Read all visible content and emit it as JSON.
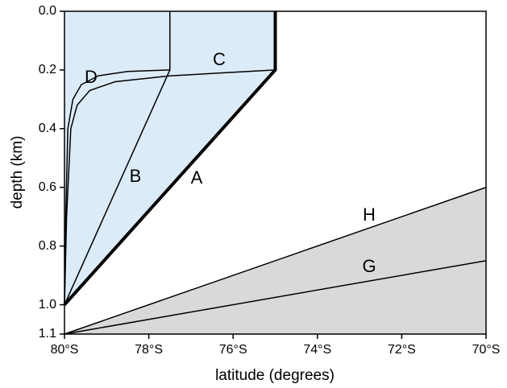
{
  "chart_data": {
    "type": "line",
    "x_label": "latitude (degrees)",
    "y_label": "depth (km)",
    "xlim": [
      80,
      70
    ],
    "ylim": [
      0,
      1.1
    ],
    "y_inverted": true,
    "xticks": [
      {
        "value": 80,
        "label": "80°S"
      },
      {
        "value": 78,
        "label": "78°S"
      },
      {
        "value": 76,
        "label": "76°S"
      },
      {
        "value": 74,
        "label": "74°S"
      },
      {
        "value": 72,
        "label": "72°S"
      },
      {
        "value": 70,
        "label": "70°S"
      }
    ],
    "yticks": [
      {
        "value": 0,
        "label": "0.0"
      },
      0.2,
      0.4,
      0.6,
      0.8,
      {
        "value": 1.0,
        "label": "1.0"
      },
      1.1
    ],
    "series": [
      {
        "name": "A",
        "color": "#000000",
        "style": "bold",
        "fill": "#dcebf8",
        "x": [
          80,
          75,
          75
        ],
        "values": [
          1.0,
          0.2,
          0.0
        ]
      },
      {
        "name": "B",
        "color": "#000000",
        "x": [
          80,
          77.5,
          77.5
        ],
        "values": [
          1.0,
          0.2,
          0.0
        ]
      },
      {
        "name": "C",
        "color": "#000000",
        "x": [
          80,
          79.95,
          79.85,
          79.7,
          79.4,
          78.8,
          77.5,
          75
        ],
        "values": [
          1.0,
          0.7,
          0.4,
          0.32,
          0.27,
          0.24,
          0.22,
          0.2
        ]
      },
      {
        "name": "D",
        "color": "#000000",
        "x": [
          80,
          79.97,
          79.92,
          79.8,
          79.6,
          79.2,
          78.5,
          77.5
        ],
        "values": [
          1.0,
          0.7,
          0.4,
          0.3,
          0.25,
          0.22,
          0.205,
          0.2
        ]
      },
      {
        "name": "H",
        "color": "#000000",
        "fill": "#d9d9d9",
        "x": [
          80,
          70
        ],
        "values": [
          1.1,
          0.6
        ]
      },
      {
        "name": "G",
        "color": "#000000",
        "x": [
          80,
          70
        ],
        "values": [
          1.1,
          0.85
        ]
      }
    ]
  }
}
